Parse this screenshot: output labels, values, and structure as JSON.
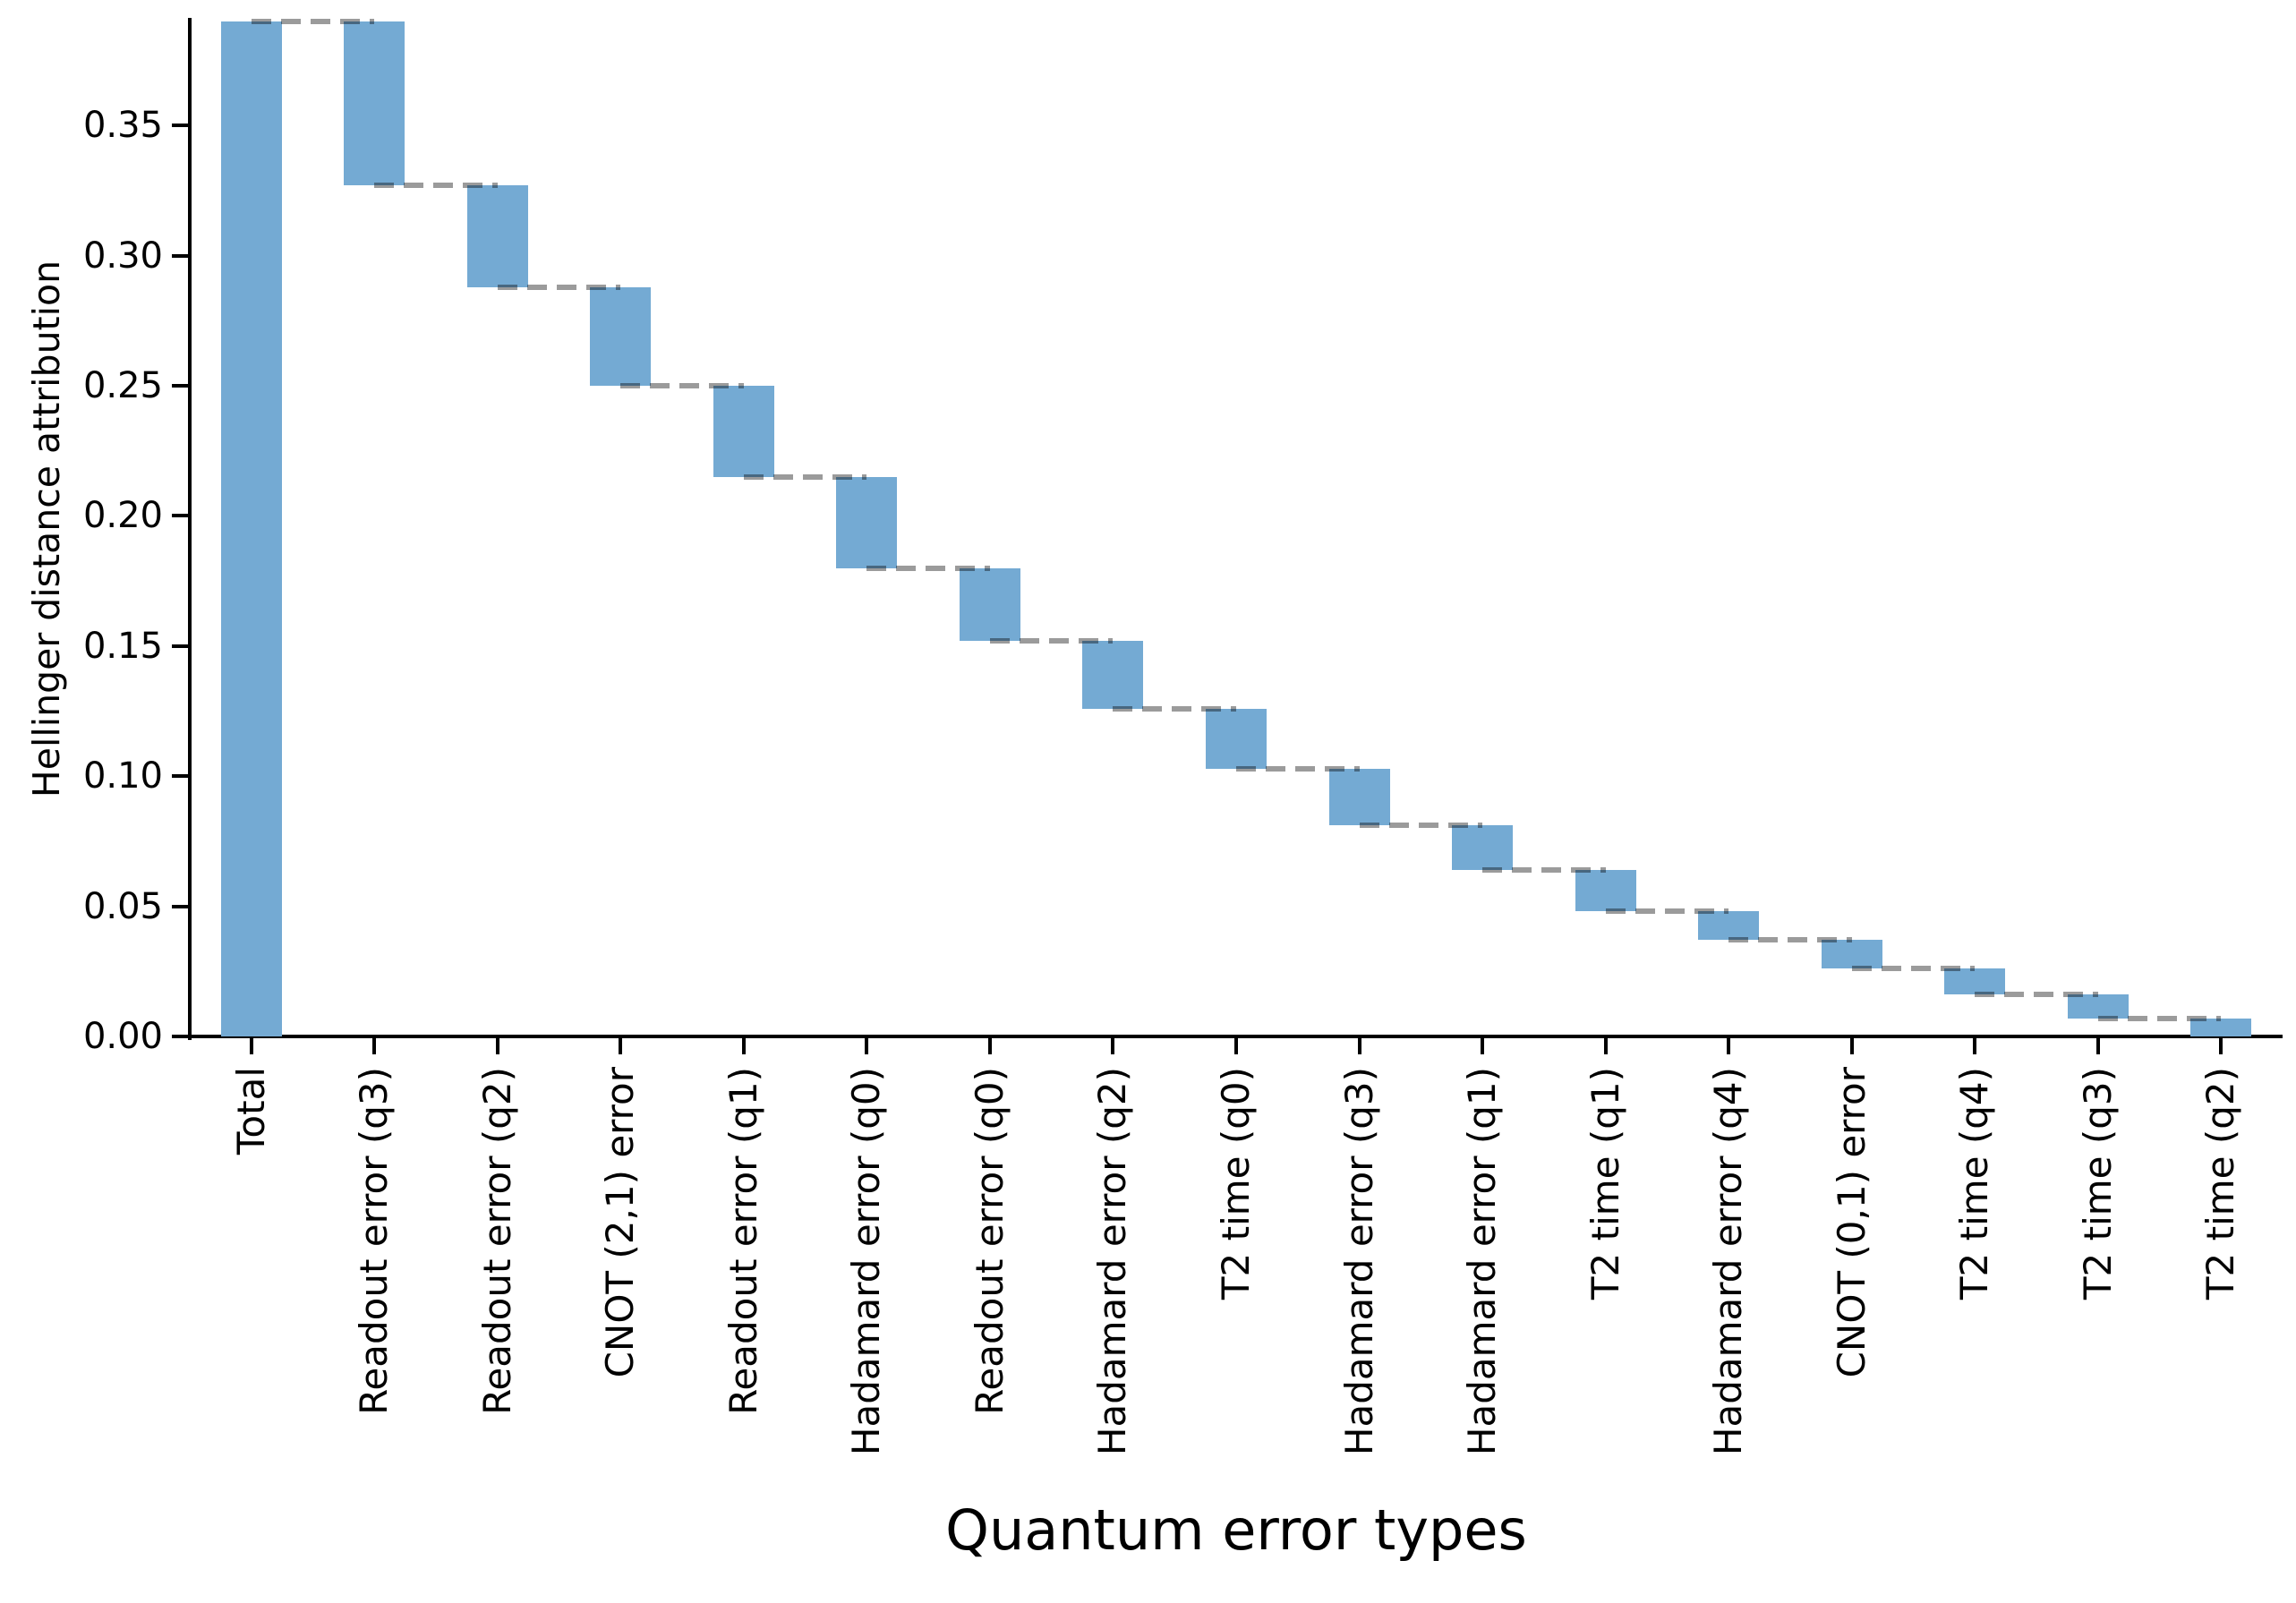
{
  "chart_data": {
    "type": "bar",
    "subtype": "waterfall",
    "title": "",
    "xlabel": "Quantum error types",
    "ylabel": "Hellinger distance attribution",
    "ylim": [
      0,
      0.39
    ],
    "grid": false,
    "legend": false,
    "yticks": [
      0.0,
      0.05,
      0.1,
      0.15,
      0.2,
      0.25,
      0.3,
      0.35
    ],
    "ytick_labels": [
      "0.00",
      "0.05",
      "0.10",
      "0.15",
      "0.20",
      "0.25",
      "0.30",
      "0.35"
    ],
    "categories": [
      "Total",
      "Readout error (q3)",
      "Readout error (q2)",
      "CNOT (2,1) error",
      "Readout error (q1)",
      "Hadamard error (q0)",
      "Readout error (q0)",
      "Hadamard error (q2)",
      "T2 time (q0)",
      "Hadamard error (q3)",
      "Hadamard error (q1)",
      "T2 time (q1)",
      "Hadamard error (q4)",
      "CNOT (0,1) error",
      "T2 time (q4)",
      "T2 time (q3)",
      "T2 time (q2)"
    ],
    "total": {
      "label": "Total",
      "value": 0.39
    },
    "contributions": [
      {
        "label": "Readout error (q3)",
        "value": 0.063
      },
      {
        "label": "Readout error (q2)",
        "value": 0.039
      },
      {
        "label": "CNOT (2,1) error",
        "value": 0.038
      },
      {
        "label": "Readout error (q1)",
        "value": 0.035
      },
      {
        "label": "Hadamard error (q0)",
        "value": 0.035
      },
      {
        "label": "Readout error (q0)",
        "value": 0.028
      },
      {
        "label": "Hadamard error (q2)",
        "value": 0.026
      },
      {
        "label": "T2 time (q0)",
        "value": 0.023
      },
      {
        "label": "Hadamard error (q3)",
        "value": 0.022
      },
      {
        "label": "Hadamard error (q1)",
        "value": 0.017
      },
      {
        "label": "T2 time (q1)",
        "value": 0.016
      },
      {
        "label": "Hadamard error (q4)",
        "value": 0.011
      },
      {
        "label": "CNOT (0,1) error",
        "value": 0.011
      },
      {
        "label": "T2 time (q4)",
        "value": 0.01
      },
      {
        "label": "T2 time (q3)",
        "value": 0.009
      },
      {
        "label": "T2 time (q2)",
        "value": 0.007
      }
    ],
    "levels_after_each_bar": [
      0.327,
      0.288,
      0.25,
      0.215,
      0.18,
      0.152,
      0.126,
      0.103,
      0.081,
      0.064,
      0.048,
      0.037,
      0.026,
      0.016,
      0.007,
      0.0
    ],
    "colors": {
      "bar": "#74aad3",
      "connector_dash": "#9b9b9b",
      "connector_on_bar": "#45657d",
      "axis": "#000000",
      "text": "#000000",
      "background": "#ffffff"
    }
  }
}
